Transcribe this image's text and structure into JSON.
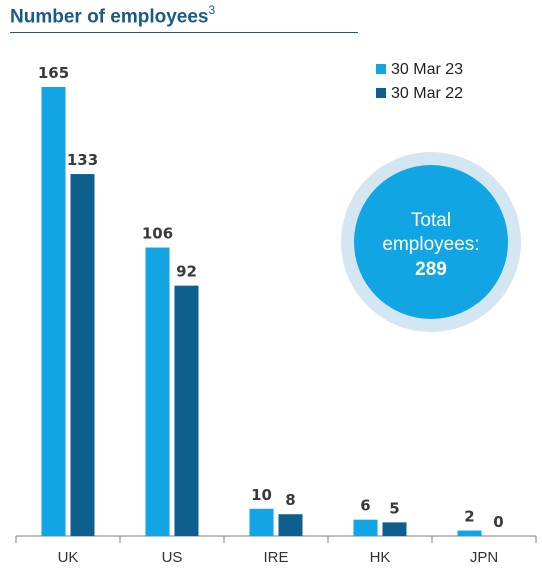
{
  "title": {
    "text": "Number of employees",
    "footnote": "3"
  },
  "colors": {
    "title": "#1a5a87",
    "series_2023": "#12a5e3",
    "series_2022": "#0d5f8e",
    "bubble_fill": "#12a5e3",
    "bubble_ring": "#d3e6f1",
    "axis": "#7f7f7f"
  },
  "total_callout": {
    "line1": "Total",
    "line2": "employees:",
    "value": "289"
  },
  "chart_data": {
    "type": "bar",
    "categories": [
      "UK",
      "US",
      "IRE",
      "HK",
      "JPN"
    ],
    "series": [
      {
        "name": "30 Mar 23",
        "values": [
          165,
          106,
          10,
          6,
          2
        ]
      },
      {
        "name": "30 Mar 22",
        "values": [
          133,
          92,
          8,
          5,
          0
        ]
      }
    ],
    "value_labels": [
      [
        "165",
        "106",
        "10",
        "6",
        "2"
      ],
      [
        "133",
        "92",
        "8",
        "5",
        "0"
      ]
    ],
    "ylim": [
      0,
      165
    ],
    "legend_position": "top-right",
    "grid": false
  }
}
